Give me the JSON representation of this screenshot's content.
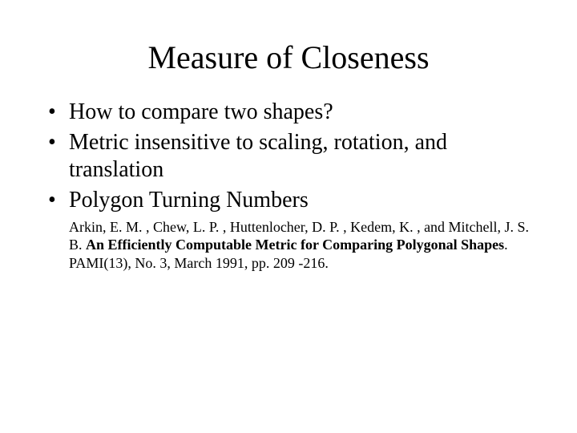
{
  "slide": {
    "title": "Measure of Closeness",
    "bullets": [
      "How to compare two shapes?",
      "Metric insensitive to scaling, rotation, and translation",
      "Polygon Turning Numbers"
    ],
    "citation": {
      "authors": "Arkin, E. M. , Chew, L. P. , Huttenlocher, D. P. , Kedem, K. , and Mitchell, J. S. B. ",
      "title": "An Efficiently Computable Metric for Comparing Polygonal Shapes",
      "venue": ". PAMI(13), No. 3, March 1991, pp. 209 -216."
    }
  },
  "style": {
    "background_color": "#ffffff",
    "text_color": "#000000",
    "font_family": "Times New Roman",
    "title_fontsize": 40,
    "bullet_fontsize": 28,
    "citation_fontsize": 18
  }
}
